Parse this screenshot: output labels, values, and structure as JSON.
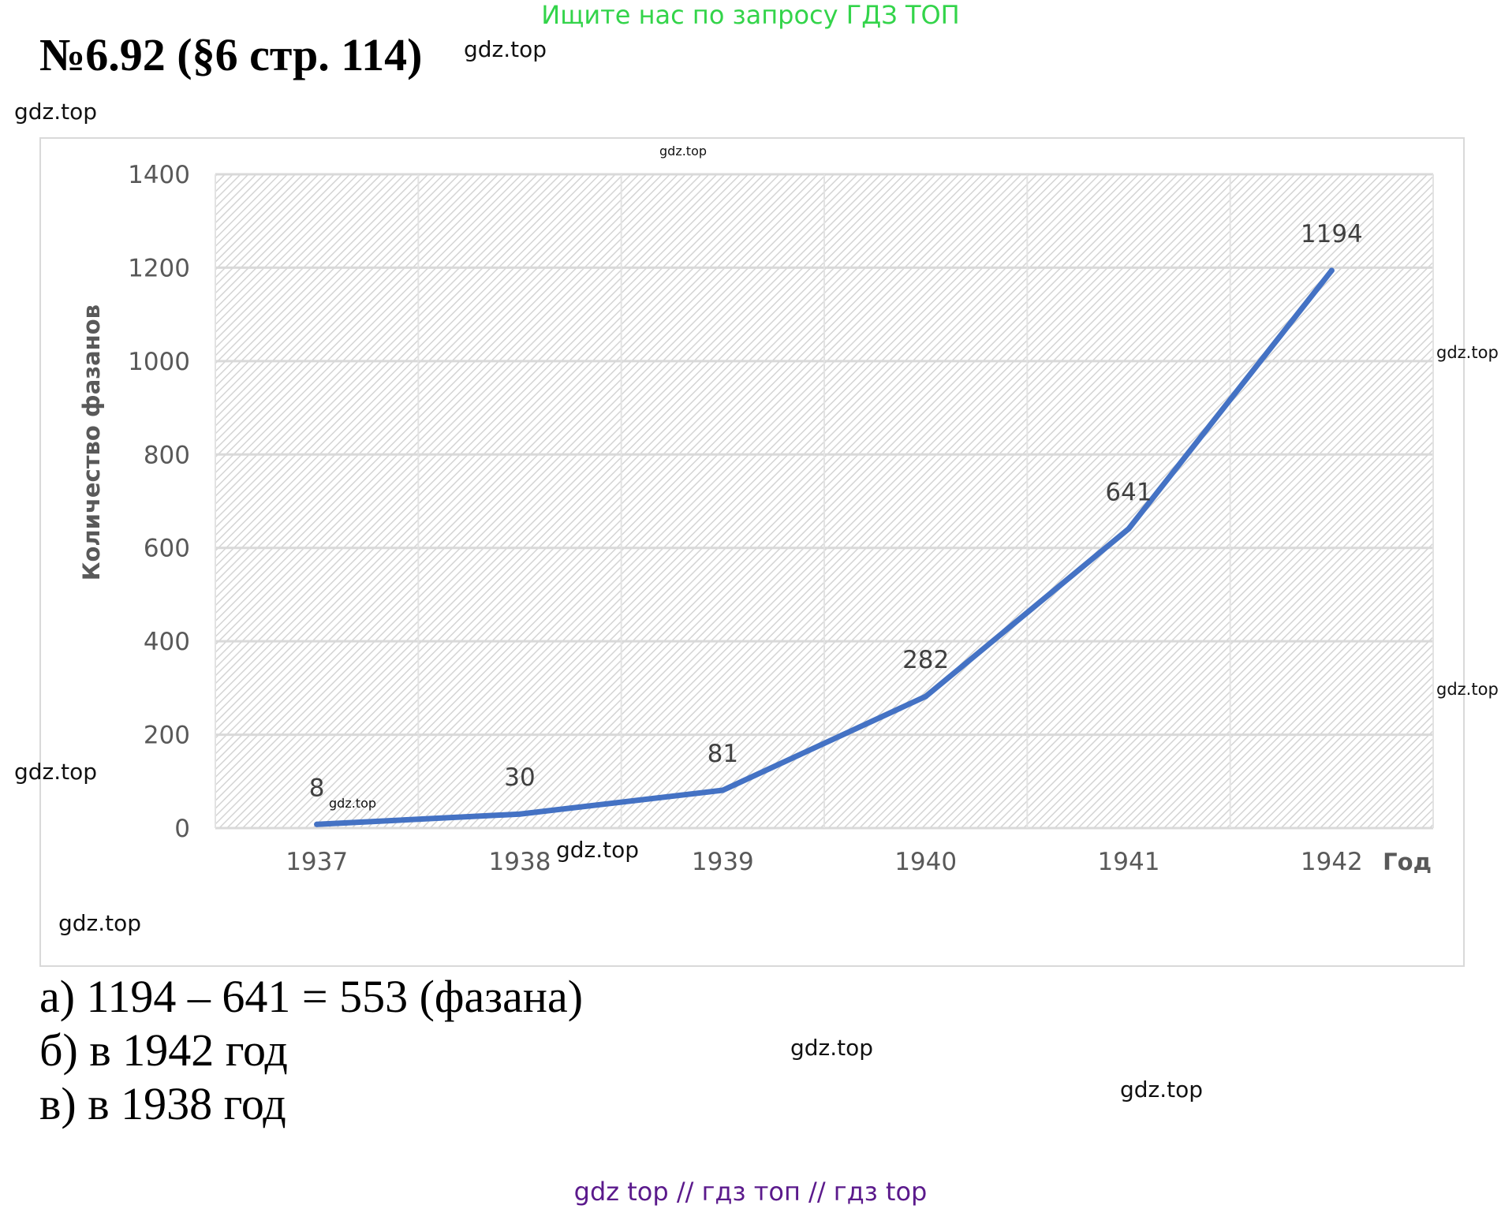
{
  "banner": "Ищите нас по запросу ГДЗ ТОП",
  "title": "№6.92 (§6 стр. 114)",
  "watermark": "gdz.top",
  "chart_data": {
    "type": "line",
    "categories": [
      "1937",
      "1938",
      "1939",
      "1940",
      "1941",
      "1942"
    ],
    "series": [
      {
        "values": [
          8,
          30,
          81,
          282,
          641,
          1194
        ],
        "color": "#4472c4"
      }
    ],
    "data_labels": [
      "8",
      "30",
      "81",
      "282",
      "641",
      "1194"
    ],
    "ylabel": "Количество фазанов",
    "xlabel": "Год",
    "ylim": [
      0,
      1400
    ],
    "yticks": [
      0,
      200,
      400,
      600,
      800,
      1000,
      1200,
      1400
    ],
    "grid": true,
    "plot_background": "hatched light grey"
  },
  "answers": [
    "а) 1194 – 641 = 553 (фазана)",
    "б) в 1942 год",
    "в) в 1938 год"
  ],
  "footer": "gdz top  //  гдз топ  //  гдз top",
  "colors": {
    "banner": "#33d44a",
    "footer": "#5b1a8c",
    "line": "#4472c4"
  }
}
